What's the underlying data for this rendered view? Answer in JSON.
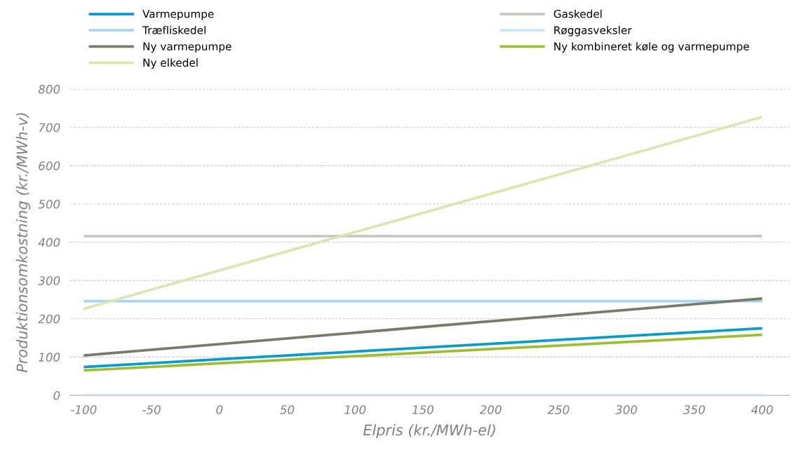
{
  "chart_data": {
    "type": "line",
    "xlabel": "Elpris (kr./MWh-el)",
    "ylabel": "Produktionsomkostning (kr./MWh-v)",
    "x": [
      -100,
      400
    ],
    "xlim": [
      -110,
      420
    ],
    "xticks": [
      -100,
      -50,
      0,
      50,
      100,
      150,
      200,
      250,
      300,
      350,
      400
    ],
    "ylim": [
      0,
      800
    ],
    "yticks": [
      0,
      100,
      200,
      300,
      400,
      500,
      600,
      700,
      800
    ],
    "grid": "y",
    "legend": "top",
    "marker": "none",
    "line_style": "solid",
    "series": [
      {
        "name": "Varmepumpe",
        "color": "#0b9bc9",
        "values": [
          74,
          175
        ]
      },
      {
        "name": "Gaskedel",
        "color": "#c8c8c0",
        "values": [
          416,
          416
        ]
      },
      {
        "name": "Træfliskedel",
        "color": "#a9d4f2",
        "values": [
          246,
          246
        ]
      },
      {
        "name": "Røggasveksler",
        "color": "#cde6f7",
        "values": [
          0,
          0
        ]
      },
      {
        "name": "Ny varmepumpe",
        "color": "#7a7a6a",
        "values": [
          104,
          253
        ]
      },
      {
        "name": "Ny kombineret køle og varmepumpe",
        "color": "#9dbd37",
        "values": [
          65,
          158
        ]
      },
      {
        "name": "Ny elkedel",
        "color": "#d9e6b4",
        "values": [
          226,
          727
        ]
      }
    ]
  }
}
